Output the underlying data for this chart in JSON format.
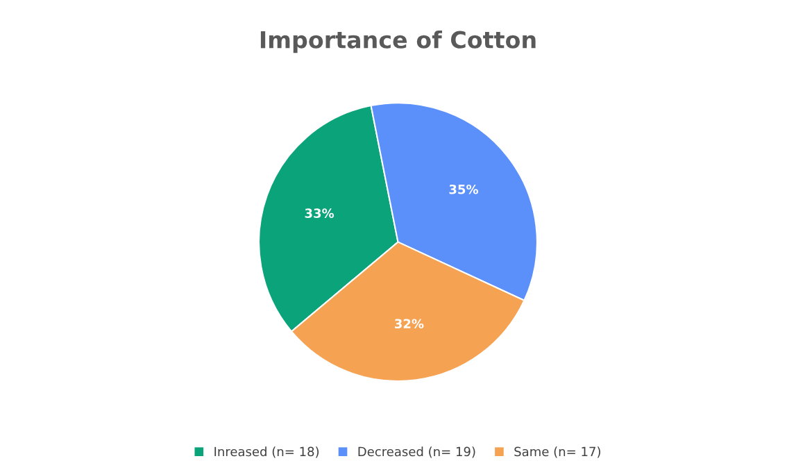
{
  "chart_data": {
    "type": "pie",
    "title": "Importance of Cotton",
    "categories": [
      "Inreased (n= 18)",
      "Decreased (n= 19)",
      "Same (n= 17)"
    ],
    "values": [
      33,
      35,
      32
    ],
    "colors": [
      "#0ba37a",
      "#5b8ff9",
      "#f5a253"
    ],
    "value_labels": [
      "33%",
      "35%",
      "32%"
    ],
    "legend": "bottom"
  }
}
